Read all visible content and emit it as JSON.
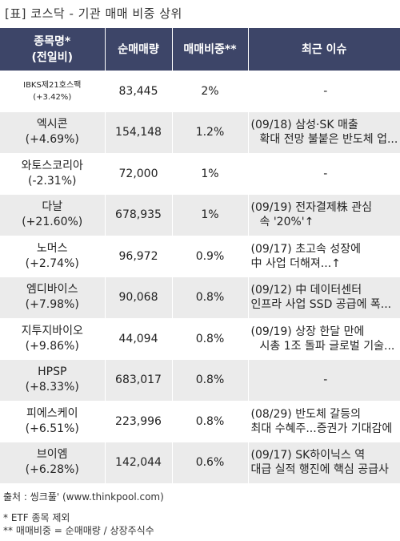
{
  "title": "[표] 코스닥 - 기관 매매 비중 상위",
  "headers": {
    "name_line1": "종목명*",
    "name_line2": "(전일비)",
    "qty": "순매매량",
    "ratio": "매매비중**",
    "issue": "최근 이슈"
  },
  "rows": [
    {
      "name": "IBKS제21호스팩",
      "change": "(+3.42%)",
      "qty": "83,445",
      "ratio": "2%",
      "issue1": "-",
      "issue2": ""
    },
    {
      "name": "엑시콘",
      "change": "(+4.69%)",
      "qty": "154,148",
      "ratio": "1.2%",
      "issue1": "(09/18) 삼성·SK 매출",
      "issue2": "확대 전망 불붙은 반도체 업..."
    },
    {
      "name": "와토스코리아",
      "change": "(-2.31%)",
      "qty": "72,000",
      "ratio": "1%",
      "issue1": "-",
      "issue2": ""
    },
    {
      "name": "다날",
      "change": "(+21.60%)",
      "qty": "678,935",
      "ratio": "1%",
      "issue1": "(09/19) 전자결제株 관심",
      "issue2": "속 '20%'↑"
    },
    {
      "name": "노머스",
      "change": "(+2.74%)",
      "qty": "96,972",
      "ratio": "0.9%",
      "issue1": "(09/17) 초고속 성장에",
      "issue2": "中 사업 더해져...↑"
    },
    {
      "name": "엠디바이스",
      "change": "(+7.98%)",
      "qty": "90,068",
      "ratio": "0.8%",
      "issue1": "(09/12) 中 데이터센터",
      "issue2": "인프라 사업 SSD 공급에 폭..."
    },
    {
      "name": "지투지바이오",
      "change": "(+9.86%)",
      "qty": "44,094",
      "ratio": "0.8%",
      "issue1": "(09/19) 상장 한달 만에",
      "issue2": "시총 1조 돌파 글로벌 기술..."
    },
    {
      "name": "HPSP",
      "change": "(+8.33%)",
      "qty": "683,017",
      "ratio": "0.8%",
      "issue1": "-",
      "issue2": ""
    },
    {
      "name": "피에스케이",
      "change": "(+6.51%)",
      "qty": "223,996",
      "ratio": "0.8%",
      "issue1": "(08/29) 반도체 갈등의",
      "issue2": "최대 수혜주...증권가 기대감에"
    },
    {
      "name": "브이엠",
      "change": "(+6.28%)",
      "qty": "142,044",
      "ratio": "0.6%",
      "issue1": "(09/17) SK하이닉스 역",
      "issue2": "대급 실적 행진에 핵심 공급사"
    }
  ],
  "source": "출처 : 씽크풀' (www.thinkpool.com)",
  "note1": "* ETF 종목 제외",
  "note2": "** 매매비중 = 순매매량 / 상장주식수",
  "colors": {
    "header_bg": "#3d4568",
    "ratio": "#e02020",
    "row_alt": "#ebebeb"
  }
}
